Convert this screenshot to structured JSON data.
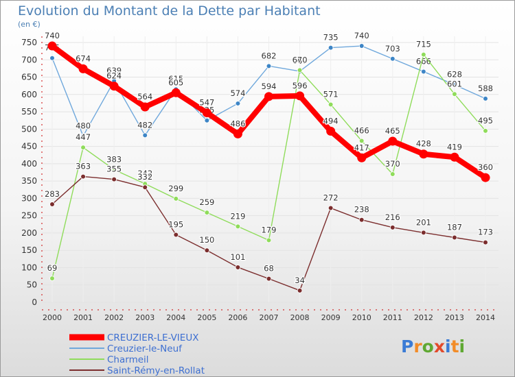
{
  "title": "Evolution du Montant de la Dette par Habitant",
  "unit_label": "(en €)",
  "logo": {
    "text": "Proxiti",
    "parts": [
      "P",
      "r",
      "o",
      "x",
      "i",
      "t",
      "i"
    ]
  },
  "chart_data": {
    "type": "line",
    "title": "Evolution du Montant de la Dette par Habitant",
    "ylabel": "(en €)",
    "x": [
      "2000",
      "2001",
      "2002",
      "2003",
      "2004",
      "2005",
      "2006",
      "2007",
      "2008",
      "2009",
      "2010",
      "2011",
      "2012",
      "2013",
      "2014"
    ],
    "ylim": [
      0,
      750
    ],
    "yticks": [
      0,
      50,
      100,
      150,
      200,
      250,
      300,
      350,
      400,
      450,
      500,
      550,
      600,
      650,
      700,
      750
    ],
    "grid": true,
    "legend": "bottom-left",
    "series": [
      {
        "name": "CREUZIER-LE-VIEUX",
        "color": "#ff0000",
        "marker_color": "#ff0000",
        "label_color": "#ffffff",
        "emphasis": true,
        "values": [
          740,
          674,
          624,
          564,
          605,
          547,
          486,
          594,
          596,
          494,
          417,
          465,
          428,
          419,
          360
        ]
      },
      {
        "name": "Creuzier-le-Neuf",
        "color": "#6fa8dc",
        "marker_color": "#3d85c6",
        "values": [
          705,
          480,
          639,
          482,
          615,
          525,
          574,
          682,
          667,
          735,
          740,
          703,
          666,
          628,
          588
        ]
      },
      {
        "name": "Charmeil",
        "color": "#8fdc5a",
        "marker_color": "#8fdc5a",
        "values": [
          69,
          447,
          383,
          342,
          299,
          259,
          219,
          179,
          670,
          571,
          466,
          370,
          715,
          601,
          495
        ]
      },
      {
        "name": "Saint-Rémy-en-Rollat",
        "color": "#7b2d2d",
        "marker_color": "#7b2d2d",
        "values": [
          283,
          363,
          355,
          332,
          195,
          150,
          101,
          68,
          34,
          272,
          238,
          216,
          201,
          187,
          173
        ]
      }
    ]
  }
}
